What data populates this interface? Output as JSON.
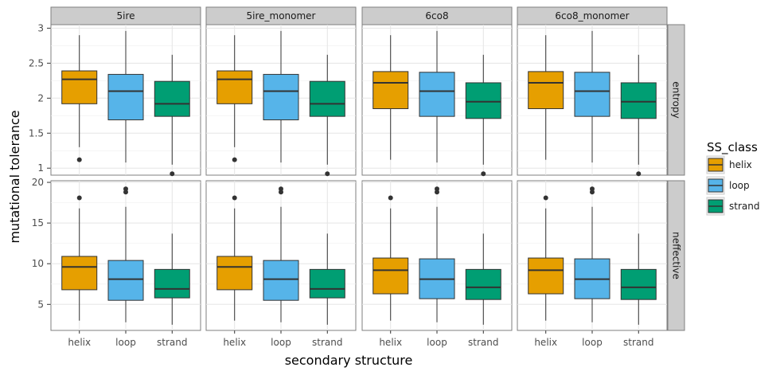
{
  "chart_data": {
    "type": "boxplot",
    "xlabel": "secondary structure",
    "ylabel": "mutational tolerance",
    "categories": [
      "helix",
      "loop",
      "strand"
    ],
    "facet_columns": [
      "5ire",
      "5ire_monomer",
      "6co8",
      "6co8_monomer"
    ],
    "facet_rows": [
      "entropy",
      "neffective"
    ],
    "legend": {
      "title": "SS_class",
      "position": "right",
      "entries": [
        {
          "label": "helix",
          "color": "#E69F00"
        },
        {
          "label": "loop",
          "color": "#56B4E9"
        },
        {
          "label": "strand",
          "color": "#009E73"
        }
      ]
    },
    "grid": true,
    "rows": [
      {
        "metric": "entropy",
        "ylim": [
          0.9,
          3.05
        ],
        "yticks": [
          1,
          1.5,
          2,
          2.5,
          3
        ],
        "yticklabels": [
          "1",
          "1.5",
          "2",
          "2.5",
          "3"
        ],
        "panels": [
          {
            "facet": "5ire",
            "boxes": [
              {
                "category": "helix",
                "whisker_low": 1.3,
                "q1": 1.92,
                "median": 2.27,
                "q3": 2.39,
                "whisker_high": 2.9,
                "outliers": [
                  1.12
                ]
              },
              {
                "category": "loop",
                "whisker_low": 1.08,
                "q1": 1.69,
                "median": 2.1,
                "q3": 2.34,
                "whisker_high": 2.96,
                "outliers": []
              },
              {
                "category": "strand",
                "whisker_low": 1.05,
                "q1": 1.74,
                "median": 1.92,
                "q3": 2.24,
                "whisker_high": 2.62,
                "outliers": [
                  0.92
                ]
              }
            ]
          },
          {
            "facet": "5ire_monomer",
            "boxes": [
              {
                "category": "helix",
                "whisker_low": 1.3,
                "q1": 1.92,
                "median": 2.27,
                "q3": 2.39,
                "whisker_high": 2.9,
                "outliers": [
                  1.12
                ]
              },
              {
                "category": "loop",
                "whisker_low": 1.08,
                "q1": 1.69,
                "median": 2.1,
                "q3": 2.34,
                "whisker_high": 2.96,
                "outliers": []
              },
              {
                "category": "strand",
                "whisker_low": 1.05,
                "q1": 1.74,
                "median": 1.92,
                "q3": 2.24,
                "whisker_high": 2.62,
                "outliers": [
                  0.92
                ]
              }
            ]
          },
          {
            "facet": "6co8",
            "boxes": [
              {
                "category": "helix",
                "whisker_low": 1.12,
                "q1": 1.85,
                "median": 2.22,
                "q3": 2.38,
                "whisker_high": 2.9,
                "outliers": []
              },
              {
                "category": "loop",
                "whisker_low": 1.08,
                "q1": 1.74,
                "median": 2.1,
                "q3": 2.37,
                "whisker_high": 2.96,
                "outliers": []
              },
              {
                "category": "strand",
                "whisker_low": 1.05,
                "q1": 1.71,
                "median": 1.95,
                "q3": 2.22,
                "whisker_high": 2.62,
                "outliers": [
                  0.92
                ]
              }
            ]
          },
          {
            "facet": "6co8_monomer",
            "boxes": [
              {
                "category": "helix",
                "whisker_low": 1.12,
                "q1": 1.85,
                "median": 2.22,
                "q3": 2.38,
                "whisker_high": 2.9,
                "outliers": []
              },
              {
                "category": "loop",
                "whisker_low": 1.08,
                "q1": 1.74,
                "median": 2.1,
                "q3": 2.37,
                "whisker_high": 2.96,
                "outliers": []
              },
              {
                "category": "strand",
                "whisker_low": 1.05,
                "q1": 1.71,
                "median": 1.95,
                "q3": 2.22,
                "whisker_high": 2.62,
                "outliers": [
                  0.92
                ]
              }
            ]
          }
        ]
      },
      {
        "metric": "neffective",
        "ylim": [
          1.8,
          20.2
        ],
        "yticks": [
          5,
          10,
          15,
          20
        ],
        "yticklabels": [
          "5",
          "10",
          "15",
          "20"
        ],
        "panels": [
          {
            "facet": "5ire",
            "boxes": [
              {
                "category": "helix",
                "whisker_low": 3.0,
                "q1": 6.8,
                "median": 9.6,
                "q3": 10.9,
                "whisker_high": 16.8,
                "outliers": [
                  18.1
                ]
              },
              {
                "category": "loop",
                "whisker_low": 2.8,
                "q1": 5.5,
                "median": 8.1,
                "q3": 10.4,
                "whisker_high": 17.0,
                "outliers": [
                  18.8,
                  19.2
                ]
              },
              {
                "category": "strand",
                "whisker_low": 2.5,
                "q1": 5.8,
                "median": 6.9,
                "q3": 9.3,
                "whisker_high": 13.7,
                "outliers": []
              }
            ]
          },
          {
            "facet": "5ire_monomer",
            "boxes": [
              {
                "category": "helix",
                "whisker_low": 3.0,
                "q1": 6.8,
                "median": 9.6,
                "q3": 10.9,
                "whisker_high": 16.8,
                "outliers": [
                  18.1
                ]
              },
              {
                "category": "loop",
                "whisker_low": 2.8,
                "q1": 5.5,
                "median": 8.1,
                "q3": 10.4,
                "whisker_high": 17.0,
                "outliers": [
                  18.8,
                  19.2
                ]
              },
              {
                "category": "strand",
                "whisker_low": 2.5,
                "q1": 5.8,
                "median": 6.9,
                "q3": 9.3,
                "whisker_high": 13.7,
                "outliers": []
              }
            ]
          },
          {
            "facet": "6co8",
            "boxes": [
              {
                "category": "helix",
                "whisker_low": 3.0,
                "q1": 6.3,
                "median": 9.2,
                "q3": 10.7,
                "whisker_high": 16.8,
                "outliers": [
                  18.1
                ]
              },
              {
                "category": "loop",
                "whisker_low": 2.8,
                "q1": 5.7,
                "median": 8.1,
                "q3": 10.6,
                "whisker_high": 17.0,
                "outliers": [
                  18.8,
                  19.2
                ]
              },
              {
                "category": "strand",
                "whisker_low": 2.5,
                "q1": 5.6,
                "median": 7.1,
                "q3": 9.3,
                "whisker_high": 13.7,
                "outliers": []
              }
            ]
          },
          {
            "facet": "6co8_monomer",
            "boxes": [
              {
                "category": "helix",
                "whisker_low": 3.0,
                "q1": 6.3,
                "median": 9.2,
                "q3": 10.7,
                "whisker_high": 16.8,
                "outliers": [
                  18.1
                ]
              },
              {
                "category": "loop",
                "whisker_low": 2.8,
                "q1": 5.7,
                "median": 8.1,
                "q3": 10.6,
                "whisker_high": 17.0,
                "outliers": [
                  18.8,
                  19.2
                ]
              },
              {
                "category": "strand",
                "whisker_low": 2.5,
                "q1": 5.6,
                "median": 7.1,
                "q3": 9.3,
                "whisker_high": 13.7,
                "outliers": []
              }
            ]
          }
        ]
      }
    ]
  }
}
